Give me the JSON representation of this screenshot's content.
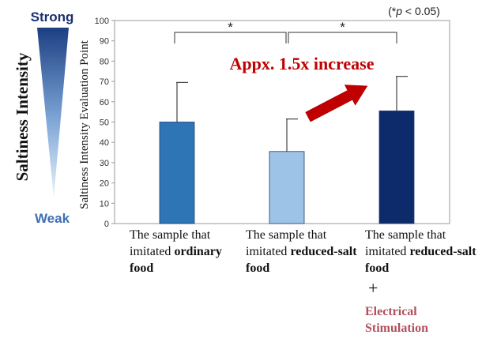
{
  "chart_data": {
    "type": "bar",
    "ylabel": "Saltiness Intensity Evaluation Point",
    "ylim": [
      0,
      100
    ],
    "yticks": [
      0,
      10,
      20,
      30,
      40,
      50,
      60,
      70,
      80,
      90,
      100
    ],
    "categories": [
      {
        "pre": "The sample that imitated ",
        "bold": "ordinary food"
      },
      {
        "pre": "The sample that imitated ",
        "bold": "reduced-salt food"
      },
      {
        "pre": "The sample that imitated ",
        "bold": "reduced-salt food"
      }
    ],
    "values": [
      50,
      35.5,
      55.5
    ],
    "error_upper": [
      69.5,
      51.5,
      72.5
    ],
    "bar_colors": [
      "#2e75b6",
      "#9dc3e6",
      "#0d2a6a"
    ],
    "significance": [
      {
        "from": 0,
        "to": 1,
        "label": "*"
      },
      {
        "from": 1,
        "to": 2,
        "label": "*"
      }
    ],
    "significance_note": "(*p < 0.05)",
    "annotation": "Appx. 1.5x increase",
    "plus_sign": "+",
    "extra_label": "Electrical Stimulation",
    "side_scale": {
      "title": "Saltiness Intensity",
      "top": "Strong",
      "bottom": "Weak"
    }
  },
  "colors": {
    "accent_red": "#c00000",
    "strong_text": "#1a2f6e",
    "weak_text": "#3f6fb0",
    "es_text": "#b0505a"
  }
}
